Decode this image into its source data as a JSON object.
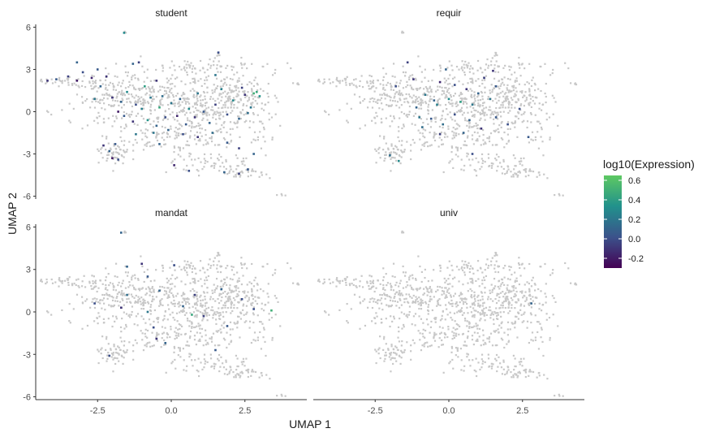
{
  "chart_data": {
    "type": "scatter",
    "kind": "faceted UMAP feature plot",
    "xlabel": "UMAP 1",
    "ylabel": "UMAP 2",
    "xlim": [
      -4.6,
      4.6
    ],
    "ylim": [
      -6.2,
      6.2
    ],
    "x_ticks": [
      -2.5,
      0.0,
      2.5
    ],
    "x_tick_labels": [
      "-2.5",
      "0.0",
      "2.5"
    ],
    "y_ticks": [
      -6,
      -3,
      0,
      3,
      6
    ],
    "y_tick_labels": [
      "-6",
      "-3",
      "0",
      "3",
      "6"
    ],
    "background_point_color": "#c8c8c8",
    "legend": {
      "title": "log10(Expression)",
      "position": "right",
      "range": [
        -0.3,
        0.65
      ],
      "ticks": [
        -0.2,
        0.0,
        0.2,
        0.4,
        0.6
      ],
      "tick_labels": [
        "-0.2",
        "0.0",
        "0.2",
        "0.4",
        "0.6"
      ],
      "colors": [
        "#440154",
        "#3b528b",
        "#21918c",
        "#5ec962"
      ]
    },
    "panels": [
      {
        "title": "student",
        "points": [
          [
            -4.2,
            2.2,
            -0.1
          ],
          [
            -3.9,
            2.3,
            0.05
          ],
          [
            -3.5,
            2.5,
            -0.05
          ],
          [
            -3.2,
            2.2,
            -0.2
          ],
          [
            -3.0,
            2.8,
            0.0
          ],
          [
            -3.2,
            3.5,
            0.1
          ],
          [
            -2.7,
            2.4,
            -0.15
          ],
          [
            -2.5,
            3.0,
            0.05
          ],
          [
            -2.2,
            2.5,
            -0.1
          ],
          [
            -1.3,
            3.4,
            0.1
          ],
          [
            -1.1,
            3.5,
            -0.05
          ],
          [
            -2.4,
            1.8,
            0.1
          ],
          [
            -2.6,
            0.9,
            0.2
          ],
          [
            -2.0,
            1.0,
            -0.1
          ],
          [
            -1.7,
            0.7,
            0.1
          ],
          [
            -1.5,
            1.4,
            0.3
          ],
          [
            -1.2,
            0.5,
            0.0
          ],
          [
            -0.9,
            1.8,
            0.4
          ],
          [
            -0.7,
            1.0,
            0.2
          ],
          [
            -0.5,
            2.2,
            -0.1
          ],
          [
            -0.3,
            1.1,
            0.15
          ],
          [
            -1.8,
            0.0,
            -0.2
          ],
          [
            -1.6,
            -0.3,
            0.05
          ],
          [
            -1.3,
            -0.7,
            -0.1
          ],
          [
            -1.0,
            0.2,
            0.25
          ],
          [
            -0.8,
            -0.6,
            0.35
          ],
          [
            -0.5,
            -1.0,
            0.1
          ],
          [
            -0.4,
            0.3,
            0.45
          ],
          [
            -0.2,
            -0.4,
            0.0
          ],
          [
            0.0,
            0.6,
            0.2
          ],
          [
            0.2,
            -0.3,
            -0.15
          ],
          [
            0.3,
            0.9,
            0.1
          ],
          [
            0.5,
            -0.9,
            0.05
          ],
          [
            0.6,
            0.2,
            0.3
          ],
          [
            0.8,
            -0.4,
            -0.1
          ],
          [
            0.9,
            1.3,
            0.2
          ],
          [
            1.1,
            0.0,
            0.05
          ],
          [
            1.3,
            -0.8,
            0.1
          ],
          [
            1.5,
            0.5,
            -0.05
          ],
          [
            1.7,
            1.6,
            0.25
          ],
          [
            1.9,
            -0.2,
            0.0
          ],
          [
            2.1,
            0.8,
            0.3
          ],
          [
            2.3,
            -0.5,
            0.1
          ],
          [
            2.5,
            1.2,
            -0.1
          ],
          [
            2.7,
            0.3,
            0.2
          ],
          [
            2.8,
            1.3,
            0.5
          ],
          [
            2.9,
            1.4,
            0.45
          ],
          [
            3.0,
            1.1,
            0.35
          ],
          [
            2.6,
            -0.1,
            0.15
          ],
          [
            2.4,
            1.7,
            -0.05
          ],
          [
            -0.6,
            -1.5,
            0.2
          ],
          [
            -0.1,
            -1.3,
            0.1
          ],
          [
            0.4,
            -1.6,
            0.0
          ],
          [
            0.9,
            -1.8,
            -0.1
          ],
          [
            1.4,
            -1.5,
            0.15
          ],
          [
            1.9,
            -2.2,
            0.05
          ],
          [
            2.3,
            -2.6,
            -0.05
          ],
          [
            2.8,
            -3.0,
            0.1
          ],
          [
            -2.3,
            -2.4,
            -0.1
          ],
          [
            -2.1,
            -2.8,
            0.1
          ],
          [
            -2.0,
            -3.3,
            -0.2
          ],
          [
            -1.8,
            -3.4,
            0.0
          ],
          [
            -1.9,
            -2.3,
            0.05
          ],
          [
            -1.2,
            -1.6,
            0.2
          ],
          [
            0.1,
            -3.8,
            -0.15
          ],
          [
            0.6,
            -4.2,
            0.0
          ],
          [
            1.8,
            -4.3,
            0.1
          ],
          [
            2.3,
            -4.4,
            -0.05
          ],
          [
            2.6,
            -4.1,
            0.05
          ],
          [
            1.5,
            2.6,
            0.2
          ],
          [
            1.6,
            4.2,
            0.0
          ],
          [
            -1.6,
            5.6,
            0.3
          ],
          [
            -0.4,
            -2.3,
            0.1
          ]
        ]
      },
      {
        "title": "requir",
        "points": [
          [
            -1.8,
            1.8,
            0.0
          ],
          [
            -1.2,
            2.3,
            -0.1
          ],
          [
            -0.8,
            1.2,
            0.2
          ],
          [
            -0.5,
            0.8,
            0.1
          ],
          [
            -0.3,
            2.1,
            -0.15
          ],
          [
            0.0,
            0.9,
            0.3
          ],
          [
            0.2,
            1.9,
            0.0
          ],
          [
            0.4,
            0.7,
            0.4
          ],
          [
            0.6,
            1.6,
            -0.1
          ],
          [
            0.8,
            0.5,
            0.2
          ],
          [
            1.0,
            1.3,
            0.1
          ],
          [
            1.2,
            2.4,
            -0.05
          ],
          [
            1.4,
            0.9,
            0.2
          ],
          [
            1.6,
            1.8,
            0.05
          ],
          [
            -1.1,
            0.3,
            0.1
          ],
          [
            -0.6,
            -0.5,
            0.05
          ],
          [
            -0.2,
            -0.9,
            0.15
          ],
          [
            0.2,
            -0.2,
            0.0
          ],
          [
            0.7,
            -0.6,
            0.1
          ],
          [
            1.1,
            -1.2,
            -0.1
          ],
          [
            1.6,
            -0.4,
            0.05
          ],
          [
            2.0,
            -0.9,
            0.0
          ],
          [
            -0.9,
            -1.1,
            0.15
          ],
          [
            -0.3,
            -1.6,
            -0.05
          ],
          [
            0.5,
            -1.5,
            0.1
          ],
          [
            2.4,
            0.2,
            0.0
          ],
          [
            2.7,
            -1.8,
            0.05
          ],
          [
            -1.4,
            3.5,
            -0.05
          ],
          [
            -0.1,
            3.0,
            0.1
          ],
          [
            -1.0,
            -0.4,
            0.2
          ],
          [
            -2.0,
            -3.1,
            0.15
          ],
          [
            -1.7,
            -3.5,
            0.3
          ],
          [
            0.8,
            -3.0,
            0.0
          ],
          [
            1.5,
            2.9,
            -0.1
          ],
          [
            -0.4,
            0.5,
            0.25
          ]
        ]
      },
      {
        "title": "mandat",
        "points": [
          [
            -1.5,
            3.2,
            0.1
          ],
          [
            -1.0,
            3.4,
            -0.1
          ],
          [
            -0.8,
            2.5,
            0.05
          ],
          [
            0.1,
            3.3,
            0.0
          ],
          [
            -0.4,
            1.5,
            0.1
          ],
          [
            0.8,
            1.2,
            -0.05
          ],
          [
            1.7,
            1.6,
            0.1
          ],
          [
            -2.6,
            0.6,
            0.0
          ],
          [
            -1.7,
            0.3,
            -0.1
          ],
          [
            -1.5,
            1.2,
            0.15
          ],
          [
            -0.8,
            0.0,
            0.2
          ],
          [
            0.4,
            0.4,
            0.1
          ],
          [
            1.1,
            -0.3,
            -0.05
          ],
          [
            2.4,
            0.9,
            0.0
          ],
          [
            2.8,
            0.2,
            0.0
          ],
          [
            3.4,
            0.1,
            0.5
          ],
          [
            0.7,
            -0.2,
            0.45
          ],
          [
            -0.6,
            -1.1,
            0.0
          ],
          [
            -0.5,
            -1.9,
            -0.1
          ],
          [
            -0.2,
            -2.2,
            0.1
          ],
          [
            1.5,
            -2.7,
            0.05
          ],
          [
            -1.7,
            5.6,
            0.1
          ],
          [
            -2.1,
            -3.1,
            0.0
          ],
          [
            1.9,
            -1.0,
            0.05
          ]
        ]
      },
      {
        "title": "univ",
        "points": [
          [
            2.8,
            0.6,
            0.1
          ]
        ]
      }
    ]
  }
}
